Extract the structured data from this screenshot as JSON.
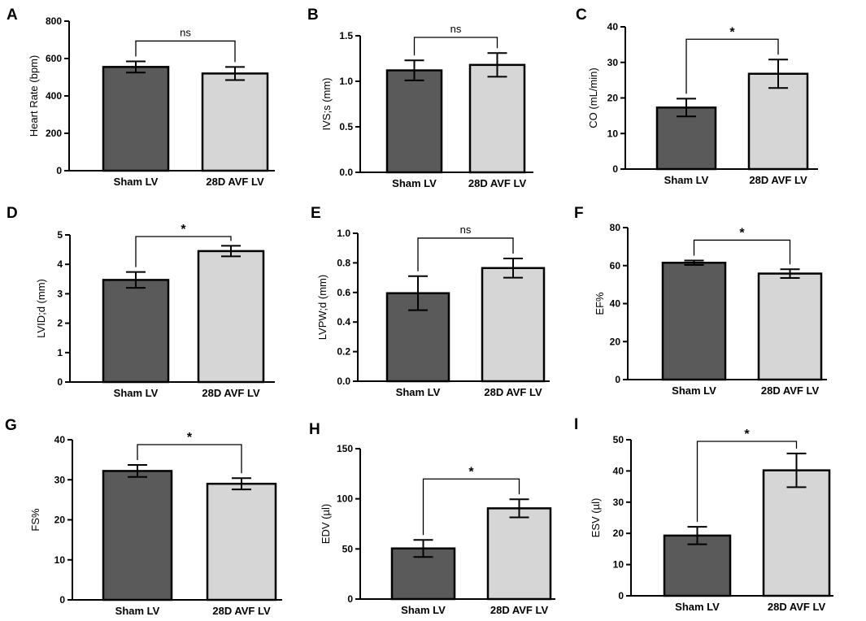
{
  "figure": {
    "colors": {
      "sham_bar": "#5a5a5a",
      "avf_bar": "#d6d6d6",
      "ink": "#000000"
    }
  },
  "chart_data": [
    {
      "panel": "A",
      "type": "bar",
      "categories": [
        "Sham LV",
        "28D AVF LV"
      ],
      "values": [
        555,
        520
      ],
      "errors": [
        30,
        35
      ],
      "ylabel": "Heart Rate (bpm)",
      "ylim": [
        0,
        800
      ],
      "yticks": [
        "0",
        "200",
        "400",
        "600",
        "800"
      ],
      "significance": "ns"
    },
    {
      "panel": "B",
      "type": "bar",
      "categories": [
        "Sham LV",
        "28D AVF LV"
      ],
      "values": [
        1.12,
        1.18
      ],
      "errors": [
        0.11,
        0.13
      ],
      "ylabel": "IVS;s (mm)",
      "ylim": [
        0,
        1.5
      ],
      "yticks": [
        "0.0",
        "0.5",
        "1.0",
        "1.5"
      ],
      "significance": "ns"
    },
    {
      "panel": "C",
      "type": "bar",
      "categories": [
        "Sham LV",
        "28D AVF LV"
      ],
      "values": [
        17.3,
        26.8
      ],
      "errors": [
        2.5,
        4.0
      ],
      "ylabel": "CO (mL/min)",
      "ylim": [
        0,
        40
      ],
      "yticks": [
        "0",
        "10",
        "20",
        "30",
        "40"
      ],
      "significance": "*"
    },
    {
      "panel": "D",
      "type": "bar",
      "categories": [
        "Sham LV",
        "28D AVF LV"
      ],
      "values": [
        3.47,
        4.45
      ],
      "errors": [
        0.27,
        0.18
      ],
      "ylabel": "LVID;d (mm)",
      "ylim": [
        0,
        5
      ],
      "yticks": [
        "0",
        "1",
        "2",
        "3",
        "4",
        "5"
      ],
      "significance": "*"
    },
    {
      "panel": "E",
      "type": "bar",
      "categories": [
        "Sham LV",
        "28D AVF LV"
      ],
      "values": [
        0.595,
        0.765
      ],
      "errors": [
        0.115,
        0.065
      ],
      "ylabel": "LVPW;d (mm)",
      "ylim": [
        0,
        1.0
      ],
      "yticks": [
        "0.0",
        "0.2",
        "0.4",
        "0.6",
        "0.8",
        "1.0"
      ],
      "significance": "ns"
    },
    {
      "panel": "F",
      "type": "bar",
      "categories": [
        "Sham LV",
        "28D AVF LV"
      ],
      "values": [
        61.5,
        55.8
      ],
      "errors": [
        1.2,
        2.3
      ],
      "ylabel": "EF%",
      "ylim": [
        0,
        80
      ],
      "yticks": [
        "0",
        "20",
        "40",
        "60",
        "80"
      ],
      "significance": "*"
    },
    {
      "panel": "G",
      "type": "bar",
      "categories": [
        "Sham LV",
        "28D AVF LV"
      ],
      "values": [
        32.2,
        29.0
      ],
      "errors": [
        1.5,
        1.4
      ],
      "ylabel": "FS%",
      "ylim": [
        0,
        40
      ],
      "yticks": [
        "0",
        "10",
        "20",
        "30",
        "40"
      ],
      "significance": "*"
    },
    {
      "panel": "H",
      "type": "bar",
      "categories": [
        "Sham LV",
        "28D AVF LV"
      ],
      "values": [
        50.5,
        90.5
      ],
      "errors": [
        8.5,
        9.0
      ],
      "ylabel": "EDV (µl)",
      "ylim": [
        0,
        150
      ],
      "yticks": [
        "0",
        "50",
        "100",
        "150"
      ],
      "significance": "*"
    },
    {
      "panel": "I",
      "type": "bar",
      "categories": [
        "Sham LV",
        "28D AVF LV"
      ],
      "values": [
        19.3,
        40.2
      ],
      "errors": [
        2.8,
        5.4
      ],
      "ylabel": "ESV (µl)",
      "ylim": [
        0,
        50
      ],
      "yticks": [
        "0",
        "10",
        "20",
        "30",
        "40",
        "50"
      ],
      "significance": "*"
    }
  ]
}
